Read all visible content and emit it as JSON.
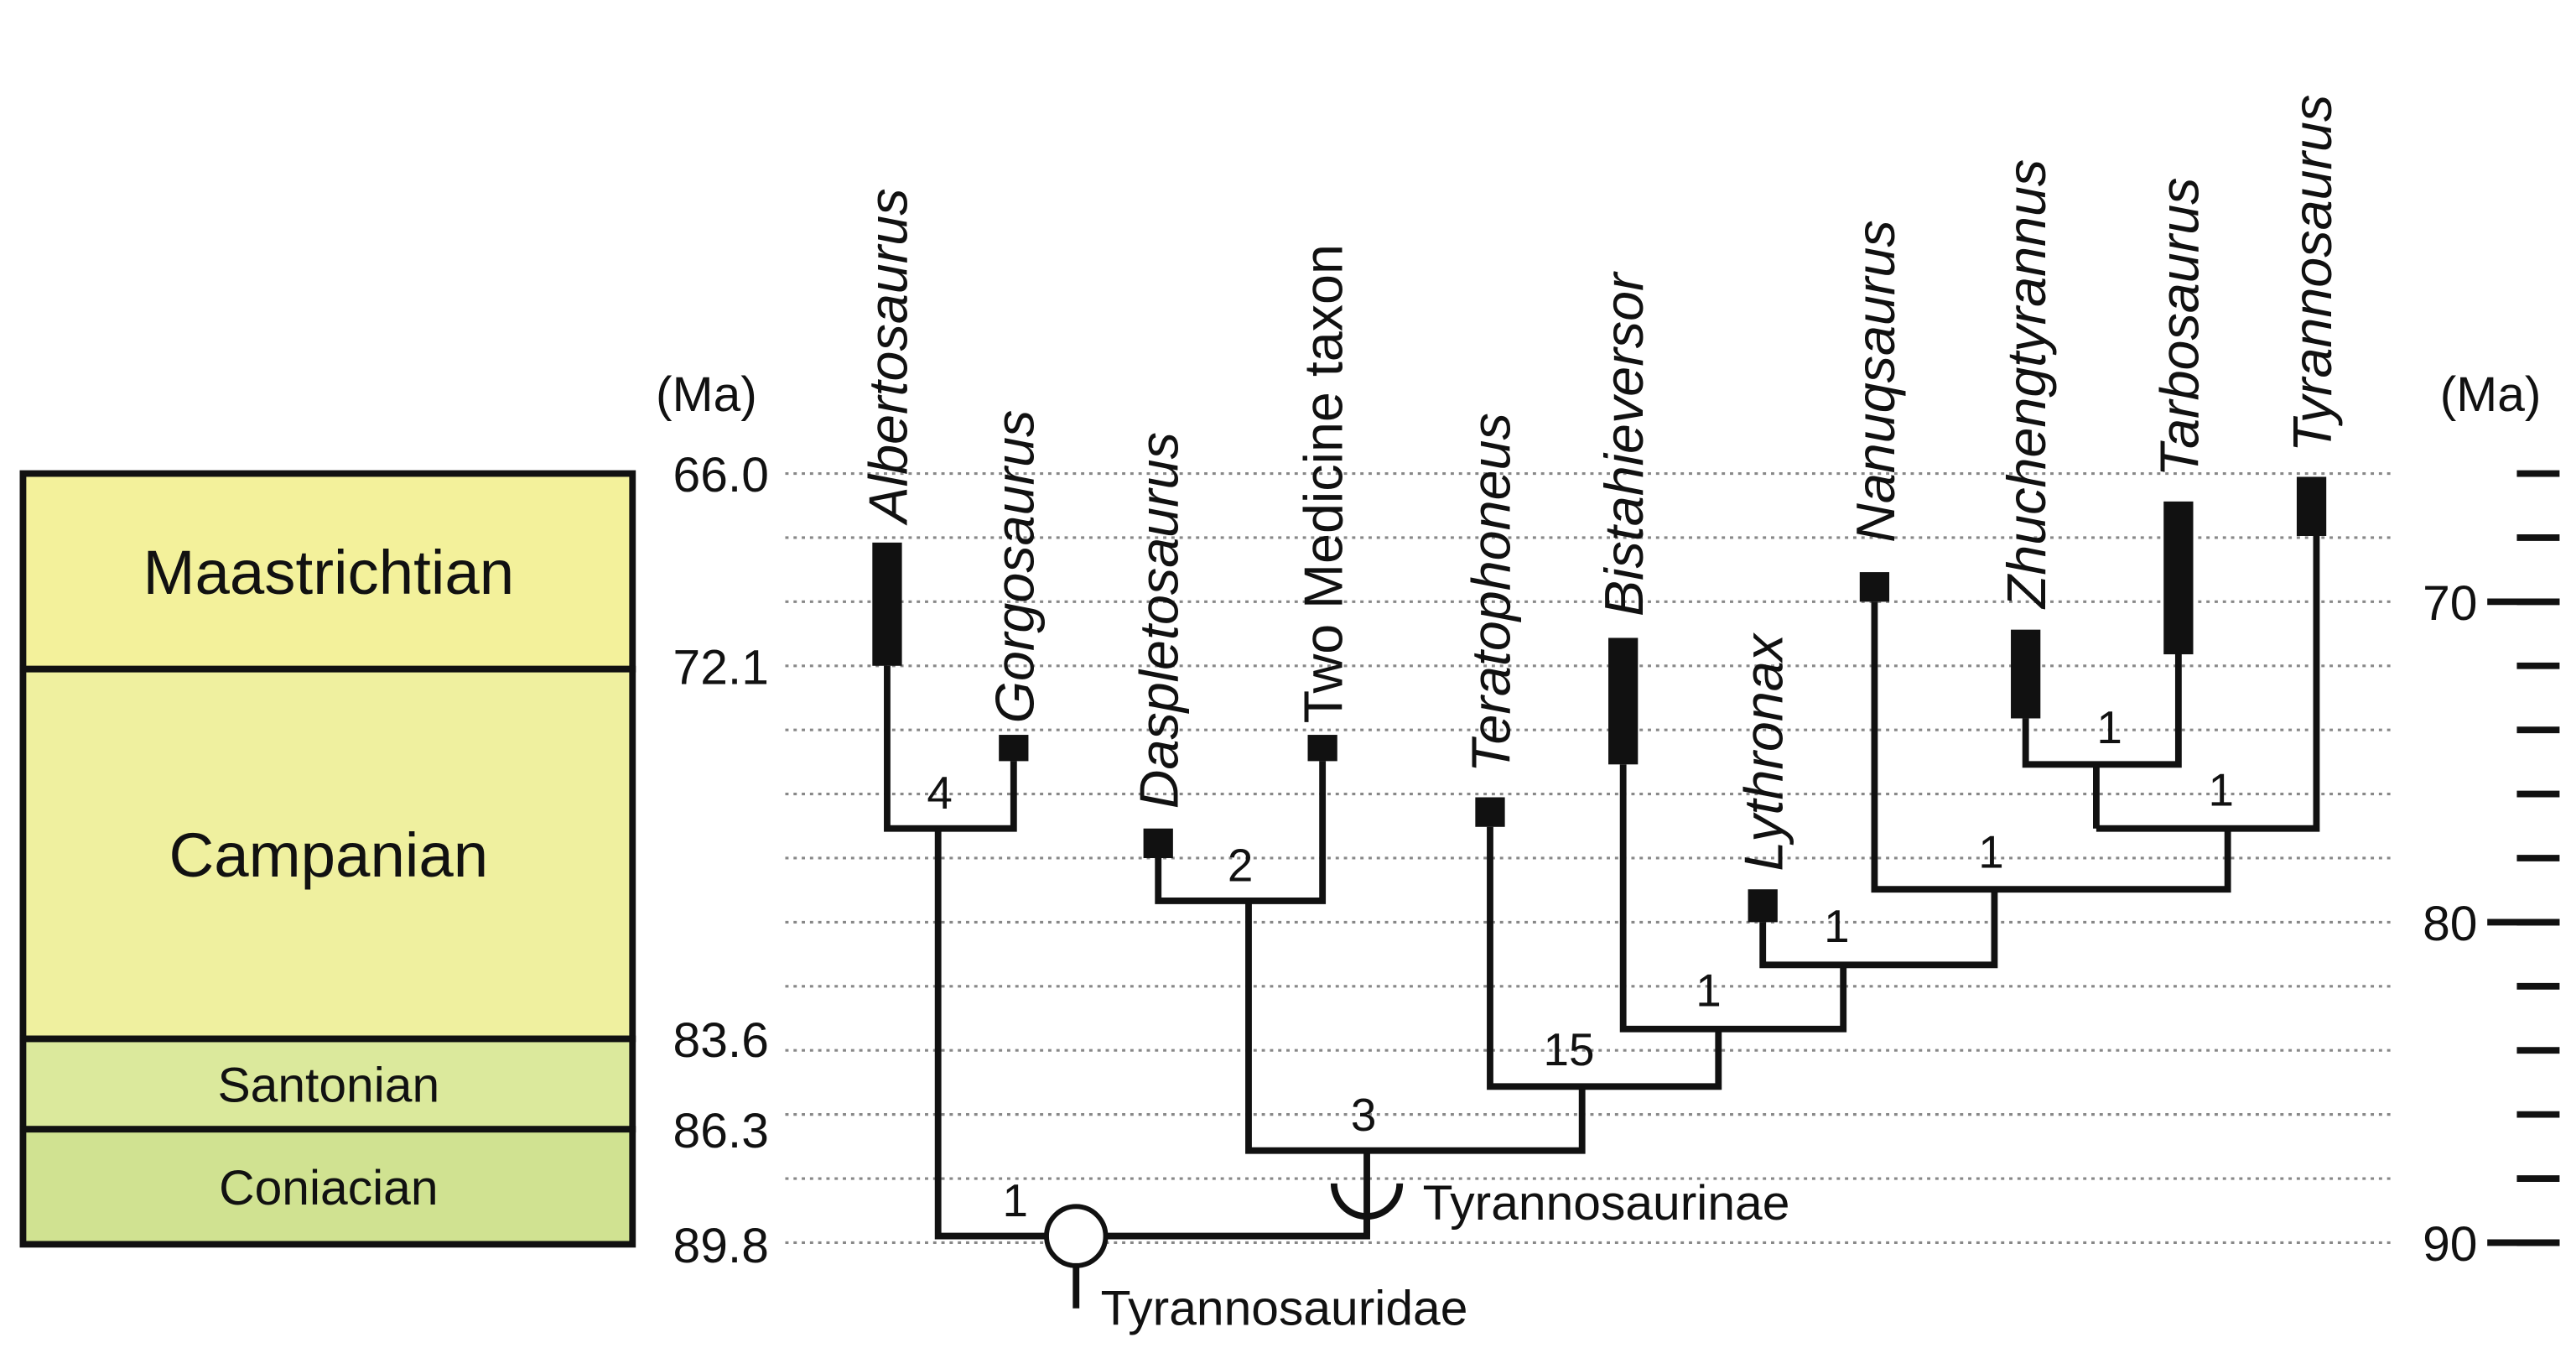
{
  "time_axis_left": {
    "unit": "(Ma)",
    "ticks": [
      "66.0",
      "72.1",
      "83.6",
      "86.3",
      "89.8"
    ]
  },
  "time_axis_right": {
    "unit": "(Ma)",
    "ticks": [
      70,
      80,
      90
    ]
  },
  "stages": [
    "Maastrichtian",
    "Campanian",
    "Santonian",
    "Coniacian"
  ],
  "taxa": [
    "Albertosaurus",
    "Gorgosaurus",
    "Daspletosaurus",
    "Two Medicine taxon",
    "Teratophoneus",
    "Bistahieversor",
    "Lythronax",
    "Nanuqsaurus",
    "Zhuchengtyrannus",
    "Tarbosaurus",
    "Tyrannosaurus"
  ],
  "node_support": [
    4,
    2,
    1,
    1,
    1,
    1,
    1,
    15,
    3,
    1
  ],
  "clades": [
    "Tyrannosaurinae",
    "Tyrannosauridae"
  ]
}
